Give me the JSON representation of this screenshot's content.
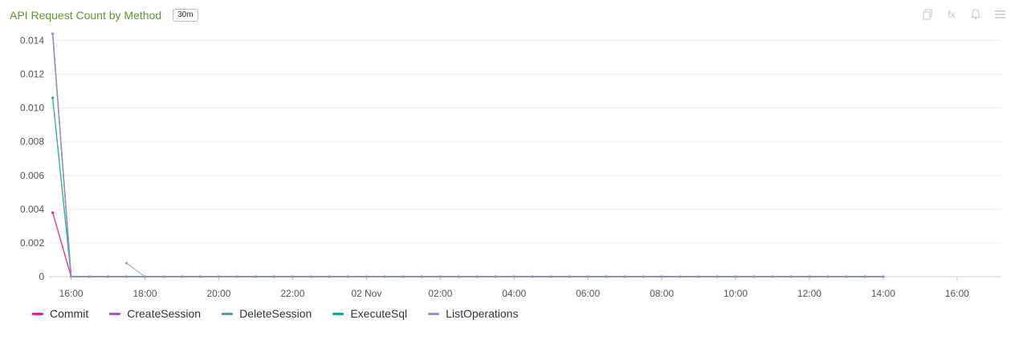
{
  "header": {
    "title": "API Request Count by Method",
    "range_badge": "30m"
  },
  "toolbar": {
    "icons": [
      "copy-icon",
      "fx-icon",
      "bell-icon",
      "menu-icon"
    ],
    "fx_glyph": "fx"
  },
  "chart_data": {
    "type": "line",
    "title": "API Request Count by Method",
    "xlabel": "",
    "ylabel": "",
    "ylim": [
      0,
      0.0145
    ],
    "y_ticks": [
      "0",
      "0.002",
      "0.004",
      "0.006",
      "0.008",
      "0.010",
      "0.012",
      "0.014"
    ],
    "y_tick_values": [
      0,
      0.002,
      0.004,
      0.006,
      0.008,
      0.01,
      0.012,
      0.014
    ],
    "x_ticks": [
      "16:00",
      "18:00",
      "20:00",
      "22:00",
      "02 Nov",
      "02:00",
      "04:00",
      "06:00",
      "08:00",
      "10:00",
      "12:00",
      "14:00",
      "16:00"
    ],
    "x_tick_hours": [
      16,
      18,
      20,
      22,
      24,
      26,
      28,
      30,
      32,
      34,
      36,
      38,
      40
    ],
    "x_range_hours": [
      15.4,
      41.2
    ],
    "x_unit": "hours since 01 Nov 00:00",
    "grid": true,
    "legend_position": "bottom-left",
    "series": [
      {
        "name": "Commit",
        "color": "#e0218a",
        "points": [
          [
            15.5,
            0.0038
          ],
          [
            16.0,
            0
          ],
          [
            38.0,
            0
          ]
        ]
      },
      {
        "name": "CreateSession",
        "color": "#9b59d6",
        "points": [
          [
            15.5,
            0.0144
          ],
          [
            16.0,
            0
          ],
          [
            38.0,
            0
          ]
        ]
      },
      {
        "name": "DeleteSession",
        "color": "#5b9aa0",
        "points": [
          [
            15.5,
            0.0144
          ],
          [
            16.0,
            0
          ],
          [
            38.0,
            0
          ]
        ]
      },
      {
        "name": "ExecuteSql",
        "color": "#1aaa8a",
        "points": [
          [
            15.5,
            0.0106
          ],
          [
            16.0,
            0
          ],
          [
            38.0,
            0
          ]
        ]
      },
      {
        "name": "ListOperations",
        "color": "#9b8fc4",
        "points": [
          [
            15.5,
            0.0144
          ],
          [
            16.0,
            0
          ],
          [
            17.5,
            0
          ],
          [
            18.0,
            0
          ],
          [
            38.0,
            0
          ]
        ],
        "extra": [
          [
            17.5,
            0.0008
          ],
          [
            18.0,
            0
          ]
        ]
      }
    ],
    "point_step_hours": 0.5
  }
}
